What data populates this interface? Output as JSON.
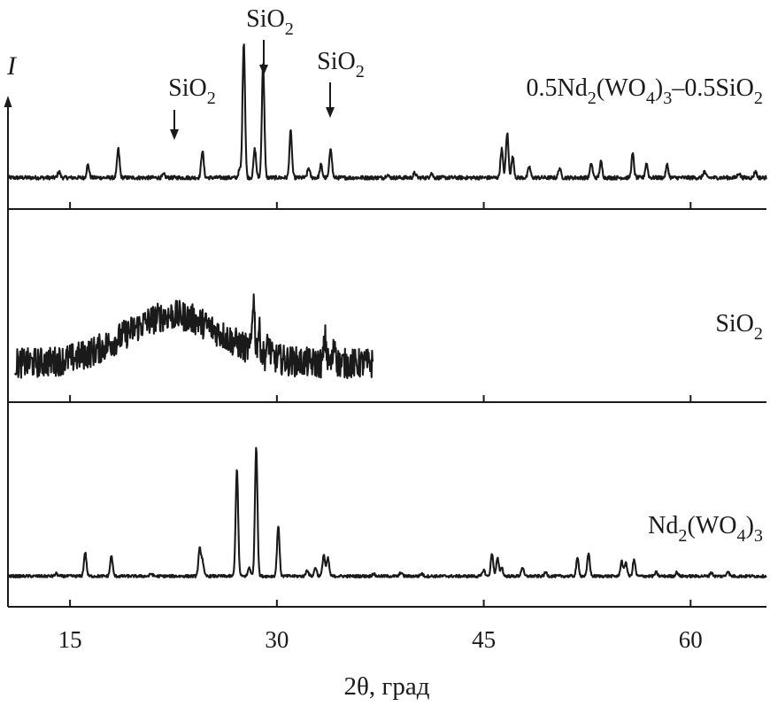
{
  "chart_data": {
    "type": "line",
    "title": "",
    "xlabel": "2θ, град",
    "ylabel": "I",
    "xlim": [
      10.5,
      65.5
    ],
    "xticks": [
      "15",
      "30",
      "45",
      "60"
    ],
    "xtick_values": [
      15,
      30,
      45,
      60
    ],
    "grid": false,
    "series": [
      {
        "name": "0.5Nd₂(WO₄)₃–0.5SiO₂",
        "label_parts": [
          {
            "t": "0.5Nd",
            "sub": false
          },
          {
            "t": "2",
            "sub": true
          },
          {
            "t": "(WO",
            "sub": false
          },
          {
            "t": "4",
            "sub": true
          },
          {
            "t": ")",
            "sub": false
          },
          {
            "t": "3",
            "sub": true
          },
          {
            "t": "–0.5SiO",
            "sub": false
          },
          {
            "t": "2",
            "sub": true
          }
        ],
        "x_range": [
          10.5,
          65.5
        ],
        "baseline": 3,
        "noise": 1.2,
        "peaks": [
          [
            14.2,
            4
          ],
          [
            16.3,
            8
          ],
          [
            18.5,
            18
          ],
          [
            21.8,
            2
          ],
          [
            24.6,
            17
          ],
          [
            27.3,
            5
          ],
          [
            27.6,
            85
          ],
          [
            28.4,
            18
          ],
          [
            29.0,
            72
          ],
          [
            31.0,
            29
          ],
          [
            32.3,
            6
          ],
          [
            33.2,
            8
          ],
          [
            33.9,
            19
          ],
          [
            38.0,
            2
          ],
          [
            40.0,
            3
          ],
          [
            41.2,
            3
          ],
          [
            46.3,
            18
          ],
          [
            46.7,
            28
          ],
          [
            47.1,
            13
          ],
          [
            48.3,
            7
          ],
          [
            50.5,
            6
          ],
          [
            52.8,
            9
          ],
          [
            53.5,
            10
          ],
          [
            55.8,
            15
          ],
          [
            56.8,
            9
          ],
          [
            58.3,
            8
          ],
          [
            61.0,
            4
          ],
          [
            63.5,
            3
          ],
          [
            64.7,
            4
          ]
        ]
      },
      {
        "name": "SiO₂",
        "label_parts": [
          {
            "t": "SiO",
            "sub": false
          },
          {
            "t": "2",
            "sub": true
          }
        ],
        "x_range": [
          11.0,
          37.0
        ],
        "baseline": 4,
        "noise": 5,
        "amorphous_hump": {
          "center": 22.5,
          "height": 16,
          "width": 3.5
        },
        "peaks": [
          [
            28.3,
            18
          ],
          [
            28.7,
            8
          ],
          [
            29.4,
            5
          ],
          [
            33.5,
            8
          ],
          [
            34.2,
            7
          ]
        ]
      },
      {
        "name": "Nd₂(WO₄)₃",
        "label_parts": [
          {
            "t": "Nd",
            "sub": false
          },
          {
            "t": "2",
            "sub": true
          },
          {
            "t": "(WO",
            "sub": false
          },
          {
            "t": "4",
            "sub": true
          },
          {
            "t": ")",
            "sub": false
          },
          {
            "t": "3",
            "sub": true
          }
        ],
        "x_range": [
          10.5,
          65.5
        ],
        "baseline": 2.5,
        "noise": 1.1,
        "peaks": [
          [
            14.0,
            2
          ],
          [
            16.1,
            19
          ],
          [
            18.0,
            16
          ],
          [
            20.9,
            2
          ],
          [
            24.4,
            21
          ],
          [
            24.6,
            12
          ],
          [
            27.1,
            85
          ],
          [
            28.0,
            7
          ],
          [
            28.5,
            102
          ],
          [
            30.1,
            40
          ],
          [
            32.2,
            5
          ],
          [
            32.8,
            7
          ],
          [
            33.4,
            17
          ],
          [
            33.7,
            14
          ],
          [
            37.0,
            2
          ],
          [
            39.0,
            3
          ],
          [
            40.5,
            2
          ],
          [
            45.0,
            5
          ],
          [
            45.6,
            18
          ],
          [
            46.0,
            14
          ],
          [
            46.3,
            7
          ],
          [
            47.8,
            7
          ],
          [
            49.5,
            3
          ],
          [
            51.8,
            14
          ],
          [
            52.6,
            18
          ],
          [
            55.0,
            12
          ],
          [
            55.3,
            11
          ],
          [
            55.9,
            13
          ],
          [
            57.5,
            3
          ],
          [
            59.0,
            3
          ],
          [
            61.5,
            3
          ],
          [
            62.7,
            4
          ]
        ]
      }
    ],
    "annotations": [
      {
        "label_parts": [
          {
            "t": "SiO",
            "sub": false
          },
          {
            "t": "2",
            "sub": true
          }
        ],
        "x": 22.0
      },
      {
        "label_parts": [
          {
            "t": "SiO",
            "sub": false
          },
          {
            "t": "2",
            "sub": true
          }
        ],
        "x": 28.4
      },
      {
        "label_parts": [
          {
            "t": "SiO",
            "sub": false
          },
          {
            "t": "2",
            "sub": true
          }
        ],
        "x": 33.5
      }
    ]
  }
}
